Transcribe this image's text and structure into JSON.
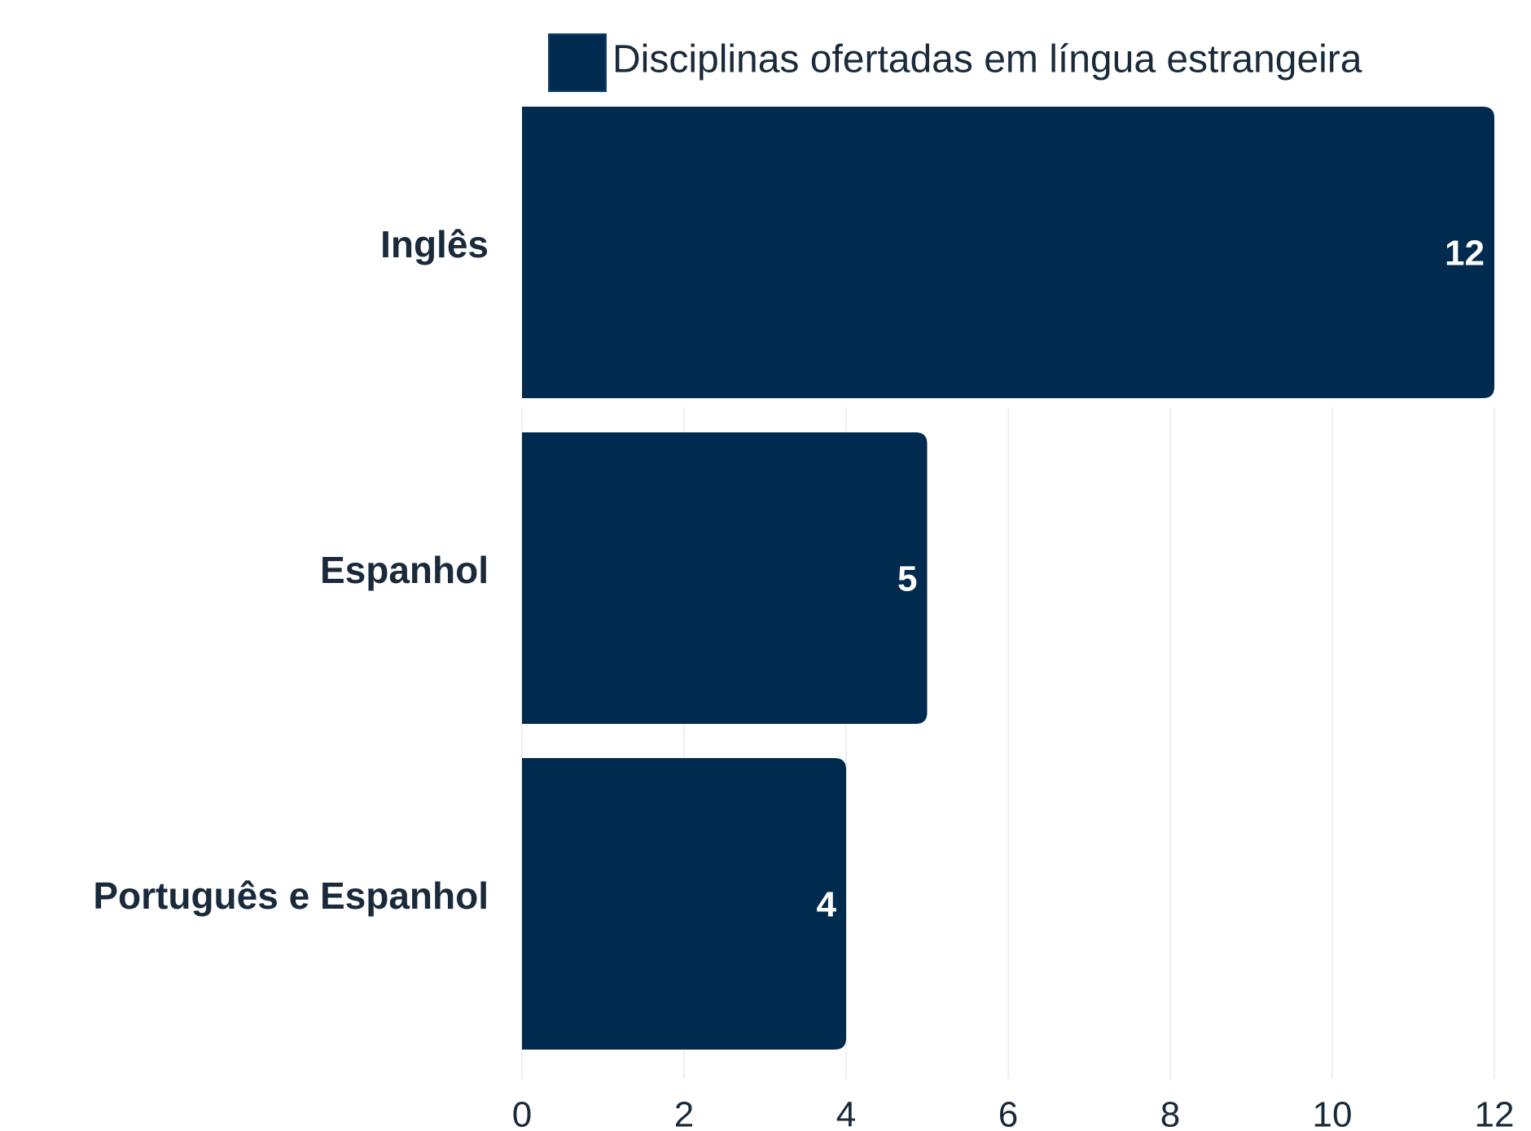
{
  "chart_data": {
    "type": "bar",
    "orientation": "horizontal",
    "categories": [
      "Inglês",
      "Espanhol",
      "Português e Espanhol"
    ],
    "series": [
      {
        "name": "Disciplinas ofertadas em língua estrangeira",
        "color": "#002a4e",
        "values": [
          12,
          5,
          4
        ]
      }
    ],
    "xlim": [
      0,
      12
    ],
    "xticks": [
      0,
      2,
      4,
      6,
      8,
      10,
      12
    ],
    "grid": true,
    "legend": "top"
  }
}
